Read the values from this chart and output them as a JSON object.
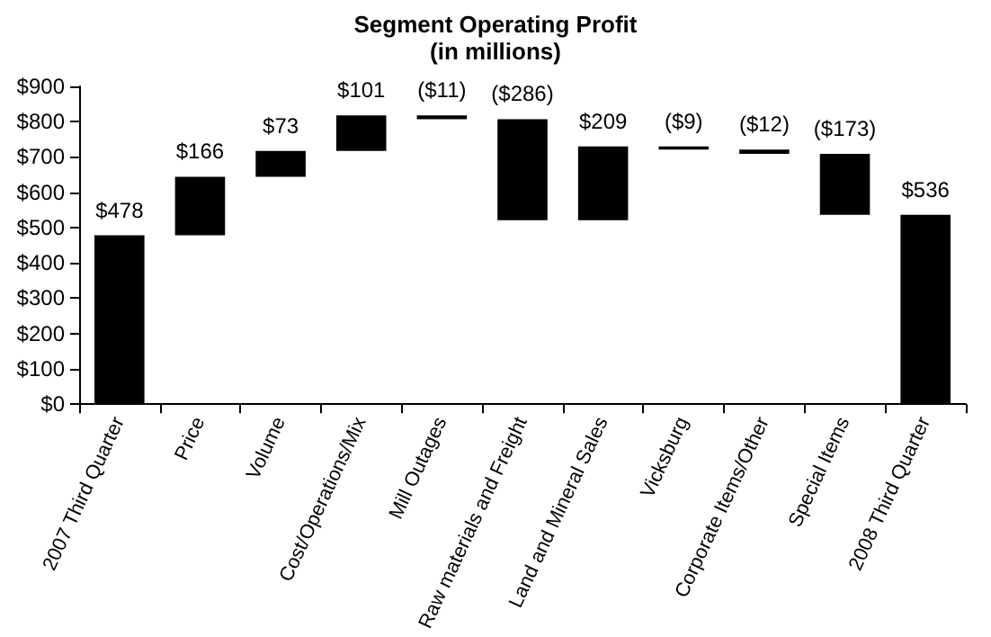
{
  "chart_data": {
    "type": "bar",
    "title": "Segment Operating Profit",
    "subtitle": "(in millions)",
    "categories": [
      "2007 Third Quarter",
      "Price",
      "Volume",
      "Cost/Operations/Mix",
      "Mill Outages",
      "Raw materials and Freight",
      "Land and Mineral Sales",
      "Vicksburg",
      "Corporate Items/Other",
      "Special Items",
      "2008 Third Quarter"
    ],
    "values": [
      478,
      166,
      73,
      101,
      -11,
      -286,
      209,
      -9,
      -12,
      -173,
      536
    ],
    "base": [
      0,
      478,
      644,
      717,
      818,
      807,
      521,
      730,
      721,
      709,
      0
    ],
    "color": "#000000",
    "value_labels": [
      "$478",
      "$166",
      "$73",
      "$101",
      "($11)",
      "($286)",
      "$209",
      "($9)",
      "($12)",
      "($173)",
      "$536"
    ],
    "ylim": [
      0,
      900
    ],
    "yticks": [
      {
        "value": 0,
        "label": "$0"
      },
      {
        "value": 100,
        "label": "$100"
      },
      {
        "value": 200,
        "label": "$200"
      },
      {
        "value": 300,
        "label": "$300"
      },
      {
        "value": 400,
        "label": "$400"
      },
      {
        "value": 500,
        "label": "$500"
      },
      {
        "value": 600,
        "label": "$600"
      },
      {
        "value": 700,
        "label": "$700"
      },
      {
        "value": 800,
        "label": "$800"
      },
      {
        "value": 900,
        "label": "$900"
      }
    ],
    "grid": false
  }
}
